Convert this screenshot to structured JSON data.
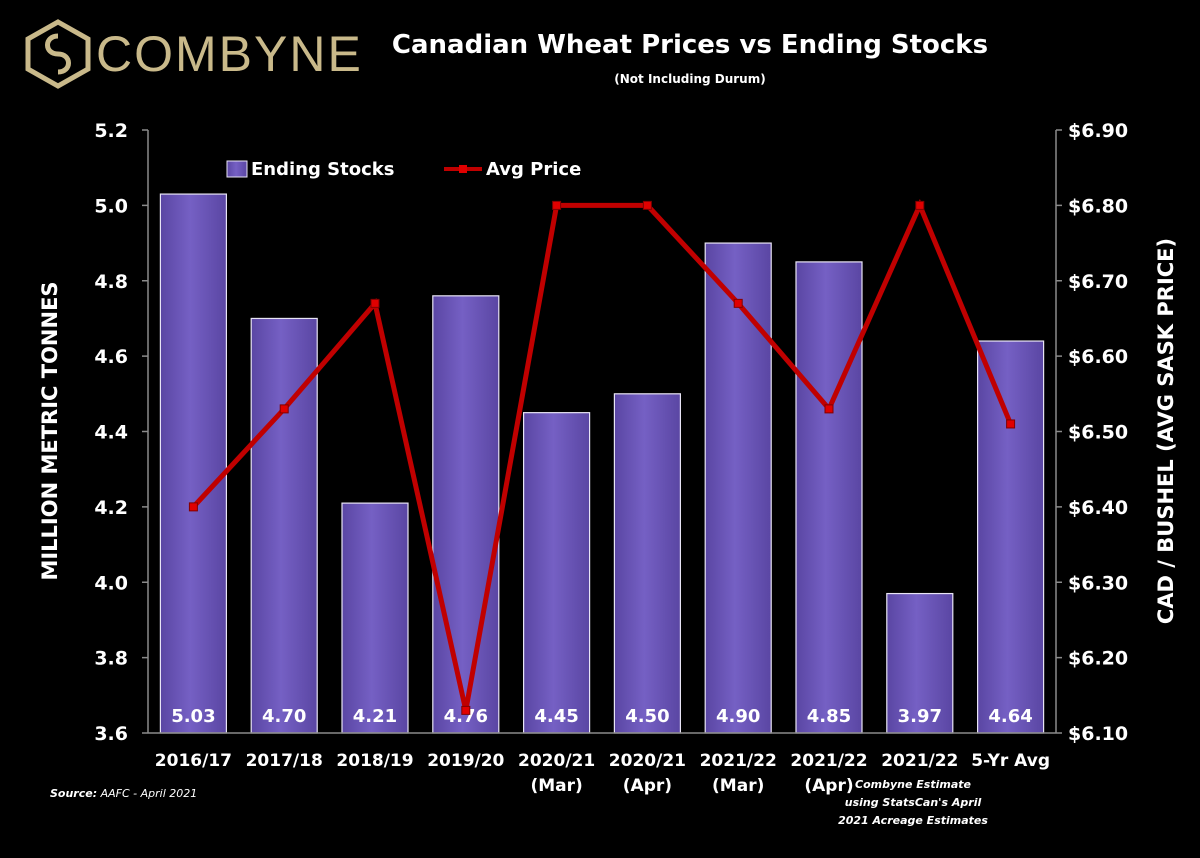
{
  "brand": {
    "name": "COMBYNE",
    "color": "#c9b98a"
  },
  "header": {
    "title": "Canadian Wheat Prices vs Ending Stocks",
    "subtitle": "(Not Including Durum)"
  },
  "footer": {
    "source_label": "Source:",
    "source_text": "AAFC - April 2021",
    "note": "Combyne Estimate using StatsCan's April 2021 Acreage Estimates"
  },
  "chart_data": {
    "type": "bar+line",
    "categories": [
      [
        "2016/17"
      ],
      [
        "2017/18"
      ],
      [
        "2018/19"
      ],
      [
        "2019/20"
      ],
      [
        "2020/21",
        "(Mar)"
      ],
      [
        "2020/21",
        "(Apr)"
      ],
      [
        "2021/22",
        "(Mar)"
      ],
      [
        "2021/22",
        "(Apr)"
      ],
      [
        "2021/22"
      ],
      [
        "5-Yr Avg"
      ]
    ],
    "series": [
      {
        "name": "Ending Stocks",
        "type": "bar",
        "axis": "left",
        "color": "#6a55b5",
        "values": [
          5.03,
          4.7,
          4.21,
          4.76,
          4.45,
          4.5,
          4.9,
          4.85,
          3.97,
          4.64
        ],
        "data_labels": [
          "5.03",
          "4.70",
          "4.21",
          "4.76",
          "4.45",
          "4.50",
          "4.90",
          "4.85",
          "3.97",
          "4.64"
        ]
      },
      {
        "name": "Avg Price",
        "type": "line",
        "axis": "right",
        "color": "#c00000",
        "values": [
          6.4,
          6.53,
          6.67,
          6.13,
          6.8,
          6.8,
          6.67,
          6.53,
          6.8,
          6.51
        ]
      }
    ],
    "ylabel_left": "MILLION METRIC TONNES",
    "ylabel_right": "CAD / BUSHEL (AVG SASK PRICE)",
    "ylim_left": [
      3.6,
      5.2
    ],
    "yticks_left": [
      "3.6",
      "3.8",
      "4.0",
      "4.2",
      "4.4",
      "4.6",
      "4.8",
      "5.0",
      "5.2"
    ],
    "ylim_right": [
      6.1,
      6.9
    ],
    "yticks_right": [
      "$6.10",
      "$6.20",
      "$6.30",
      "$6.40",
      "$6.50",
      "$6.60",
      "$6.70",
      "$6.80",
      "$6.90"
    ],
    "legend_position": "top-left",
    "grid": false
  }
}
